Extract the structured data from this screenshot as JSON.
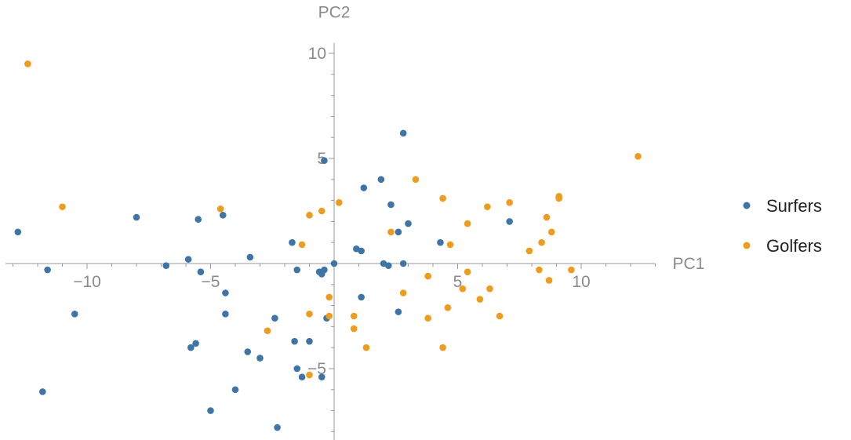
{
  "chart_data": {
    "type": "scatter",
    "title": "",
    "xlabel": "PC1",
    "ylabel": "PC2",
    "xlim": [
      -13.3,
      13.0
    ],
    "ylim": [
      -8.4,
      10.5
    ],
    "x_ticks": [
      -10,
      -5,
      5,
      10
    ],
    "y_ticks": [
      -5,
      5,
      10
    ],
    "x_tick_labels": [
      "−10",
      "−5",
      "5",
      "10"
    ],
    "y_tick_labels": [
      "−5",
      "5",
      "10"
    ],
    "grid": false,
    "legend_position": "right",
    "series": [
      {
        "name": "Surfers",
        "color": "#3e75a8",
        "points": [
          [
            -12.8,
            1.5
          ],
          [
            -11.6,
            -0.3
          ],
          [
            -11.8,
            -6.1
          ],
          [
            -10.5,
            -2.4
          ],
          [
            -8.0,
            2.2
          ],
          [
            -6.8,
            -0.1
          ],
          [
            -5.9,
            0.2
          ],
          [
            -5.5,
            2.1
          ],
          [
            -5.4,
            -0.4
          ],
          [
            -5.6,
            -3.8
          ],
          [
            -5.8,
            -4.0
          ],
          [
            -4.5,
            2.3
          ],
          [
            -4.4,
            -1.4
          ],
          [
            -4.4,
            -2.4
          ],
          [
            -5.0,
            -7.0
          ],
          [
            -3.4,
            0.3
          ],
          [
            -3.5,
            -4.2
          ],
          [
            -4.0,
            -6.0
          ],
          [
            -3.0,
            -4.5
          ],
          [
            -2.4,
            -2.6
          ],
          [
            -2.3,
            -7.8
          ],
          [
            -1.7,
            1.0
          ],
          [
            -1.6,
            -3.7
          ],
          [
            -1.5,
            -0.3
          ],
          [
            -1.5,
            -5.0
          ],
          [
            -1.0,
            -3.7
          ],
          [
            -1.3,
            -5.4
          ],
          [
            -0.6,
            -0.4
          ],
          [
            -0.5,
            -5.4
          ],
          [
            -0.3,
            -2.6
          ],
          [
            -0.5,
            -0.5
          ],
          [
            -0.4,
            -0.3
          ],
          [
            -0.4,
            4.9
          ],
          [
            0.0,
            0.0
          ],
          [
            0.9,
            0.7
          ],
          [
            1.1,
            0.6
          ],
          [
            1.1,
            -1.6
          ],
          [
            1.2,
            3.6
          ],
          [
            1.9,
            4.0
          ],
          [
            2.0,
            0.0
          ],
          [
            2.2,
            -0.1
          ],
          [
            2.3,
            2.8
          ],
          [
            2.6,
            1.5
          ],
          [
            2.6,
            -2.3
          ],
          [
            2.8,
            0.0
          ],
          [
            2.8,
            6.2
          ],
          [
            3.0,
            1.9
          ],
          [
            4.3,
            1.0
          ],
          [
            7.1,
            2.0
          ]
        ]
      },
      {
        "name": "Golfers",
        "color": "#f09c1b",
        "points": [
          [
            -12.4,
            9.5
          ],
          [
            -11.0,
            2.7
          ],
          [
            -4.6,
            2.6
          ],
          [
            -2.7,
            -3.2
          ],
          [
            -1.3,
            0.9
          ],
          [
            -1.0,
            2.3
          ],
          [
            -1.0,
            -2.4
          ],
          [
            -1.0,
            -5.3
          ],
          [
            -0.5,
            2.5
          ],
          [
            -0.2,
            -1.6
          ],
          [
            -0.2,
            -2.5
          ],
          [
            0.2,
            2.9
          ],
          [
            0.8,
            -2.5
          ],
          [
            0.8,
            -3.1
          ],
          [
            1.3,
            -4.0
          ],
          [
            2.3,
            1.5
          ],
          [
            2.8,
            -1.4
          ],
          [
            3.3,
            4.0
          ],
          [
            3.8,
            -0.6
          ],
          [
            3.8,
            -2.6
          ],
          [
            4.4,
            3.1
          ],
          [
            4.4,
            -4.0
          ],
          [
            4.6,
            -2.1
          ],
          [
            4.7,
            0.9
          ],
          [
            5.2,
            -1.2
          ],
          [
            5.4,
            -0.4
          ],
          [
            5.4,
            1.9
          ],
          [
            5.9,
            -1.7
          ],
          [
            6.2,
            2.7
          ],
          [
            6.3,
            -1.2
          ],
          [
            6.7,
            -2.5
          ],
          [
            7.1,
            2.9
          ],
          [
            7.9,
            0.6
          ],
          [
            8.3,
            -0.3
          ],
          [
            8.4,
            1.0
          ],
          [
            8.6,
            2.2
          ],
          [
            8.7,
            -0.8
          ],
          [
            8.8,
            1.5
          ],
          [
            9.1,
            3.2
          ],
          [
            9.1,
            3.1
          ],
          [
            9.6,
            -0.3
          ],
          [
            12.3,
            5.1
          ]
        ]
      }
    ]
  }
}
